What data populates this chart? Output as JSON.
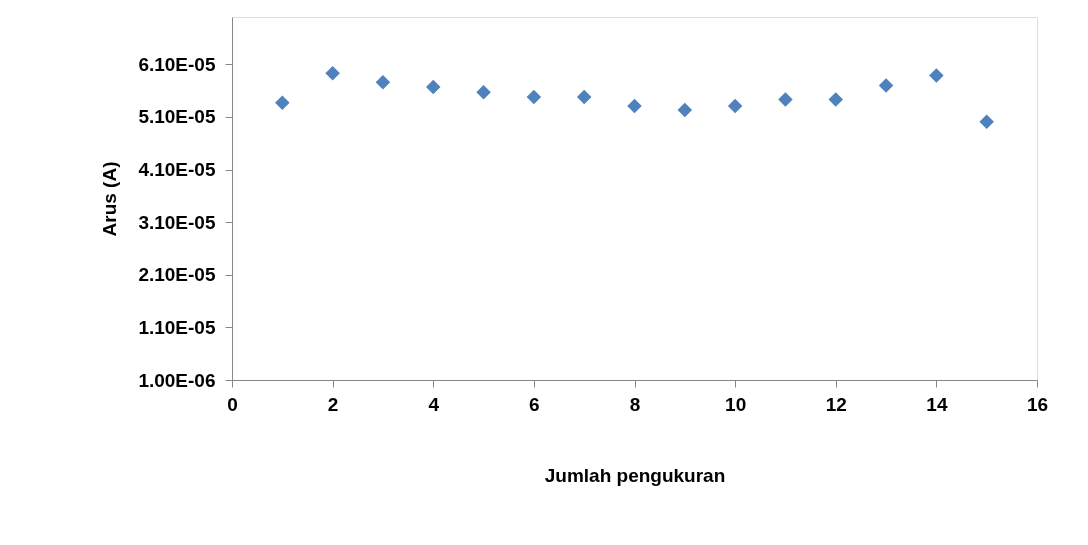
{
  "chart_data": {
    "type": "scatter",
    "xlabel": "Jumlah pengukuran",
    "ylabel": "Arus (A)",
    "x": [
      1,
      2,
      3,
      4,
      5,
      6,
      7,
      8,
      9,
      10,
      11,
      12,
      13,
      14,
      15
    ],
    "series": [
      {
        "color": "#4f81bd",
        "values": [
          5.37e-05,
          5.93e-05,
          5.76e-05,
          5.67e-05,
          5.57e-05,
          5.48e-05,
          5.48e-05,
          5.31e-05,
          5.23e-05,
          5.31e-05,
          5.43e-05,
          5.43e-05,
          5.7e-05,
          5.89e-05,
          5.01e-05
        ]
      }
    ],
    "xlim": [
      0,
      16
    ],
    "xticks": [
      0,
      2,
      4,
      6,
      8,
      10,
      12,
      14,
      16
    ],
    "ylim": [
      1e-06,
      7e-05
    ],
    "yticks": [
      {
        "value": 1e-06,
        "label": "1.00E-06"
      },
      {
        "value": 1.1e-05,
        "label": "1.10E-05"
      },
      {
        "value": 2.1e-05,
        "label": "2.10E-05"
      },
      {
        "value": 3.1e-05,
        "label": "3.10E-05"
      },
      {
        "value": 4.1e-05,
        "label": "4.10E-05"
      },
      {
        "value": 5.1e-05,
        "label": "5.10E-05"
      },
      {
        "value": 6.1e-05,
        "label": "6.10E-05"
      }
    ],
    "marker": "diamond",
    "grid": false
  }
}
